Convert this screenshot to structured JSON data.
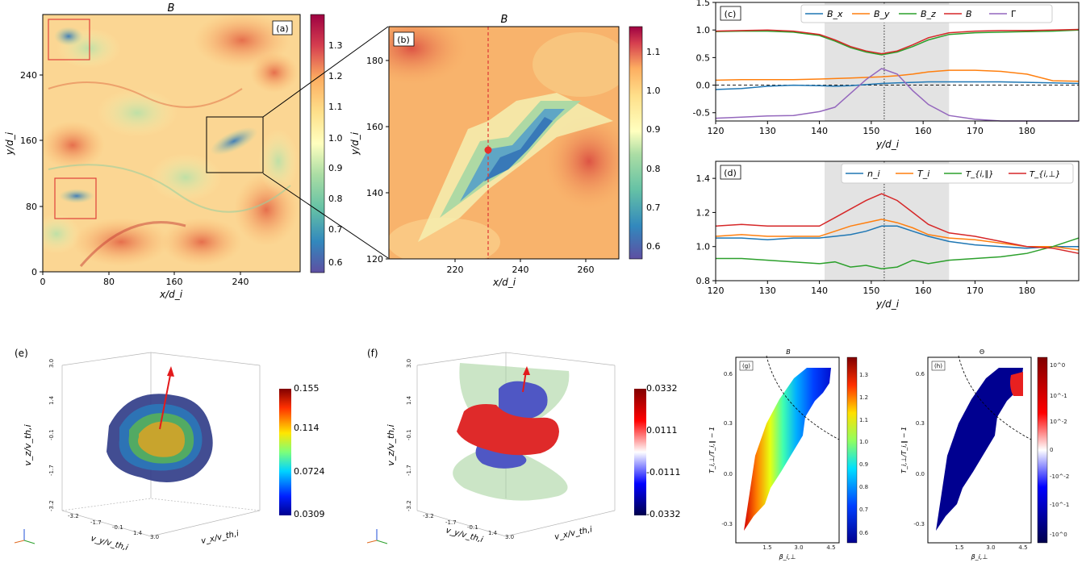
{
  "chart_data": [
    {
      "type": "heatmap",
      "panel_label": "(a)",
      "title": "B",
      "xlabel": "x/d_i",
      "ylabel": "y/d_i",
      "xticks": [
        "0",
        "80",
        "160",
        "240"
      ],
      "yticks": [
        "0",
        "80",
        "160",
        "240"
      ],
      "xlim": [
        0,
        312
      ],
      "ylim": [
        0,
        312
      ],
      "colorbar": {
        "ticks": [
          "0.6",
          "0.7",
          "0.8",
          "0.9",
          "1.0",
          "1.1",
          "1.2",
          "1.3"
        ],
        "range": [
          0.55,
          1.39
        ],
        "colormap": "Spectral_r"
      },
      "annotations": [
        {
          "type": "box",
          "color": "#e0403a",
          "x": [
            8,
            58
          ],
          "y": [
            256,
            306
          ]
        },
        {
          "type": "box",
          "color": "#e0403a",
          "x": [
            15,
            65
          ],
          "y": [
            65,
            115
          ]
        },
        {
          "type": "box",
          "color": "#000000",
          "x": [
            200,
            270
          ],
          "y": [
            120,
            188
          ]
        }
      ]
    },
    {
      "type": "heatmap",
      "panel_label": "(b)",
      "title": "B",
      "xlabel": "x/d_i",
      "ylabel": "y/d_i",
      "xticks": [
        "220",
        "240",
        "260"
      ],
      "yticks": [
        "120",
        "140",
        "160",
        "180"
      ],
      "xlim": [
        200,
        270
      ],
      "ylim": [
        120,
        190
      ],
      "colorbar": {
        "ticks": [
          "0.6",
          "0.7",
          "0.8",
          "0.9",
          "1.0",
          "1.1"
        ],
        "range": [
          0.55,
          1.16
        ],
        "colormap": "Spectral_r"
      },
      "annotations": [
        {
          "type": "vline",
          "color": "#e0403a",
          "x": 230.5
        },
        {
          "type": "point",
          "color": "#e8302a",
          "x": 230.5,
          "y": 153
        }
      ]
    },
    {
      "type": "line",
      "panel_label": "(c)",
      "xlabel": "y/d_i",
      "ylabel": "",
      "xticks": [
        "120",
        "130",
        "140",
        "150",
        "160",
        "170",
        "180"
      ],
      "yticks": [
        "-0.5",
        "0.0",
        "0.5",
        "1.0",
        "1.5"
      ],
      "xlim": [
        120,
        190
      ],
      "ylim": [
        -0.65,
        1.5
      ],
      "shaded_region": [
        141,
        165
      ],
      "vline": 152.5,
      "hline": 0,
      "legend_position": "top-right",
      "x": [
        120,
        125,
        130,
        135,
        140,
        143,
        146,
        149,
        152,
        155,
        158,
        161,
        165,
        170,
        175,
        180,
        185,
        190
      ],
      "series": [
        {
          "name": "B_x",
          "color": "#1f77b4",
          "values": [
            -0.08,
            -0.06,
            -0.02,
            0.0,
            -0.01,
            -0.02,
            -0.01,
            0.01,
            0.03,
            0.04,
            0.05,
            0.06,
            0.06,
            0.06,
            0.06,
            0.05,
            0.04,
            0.03
          ]
        },
        {
          "name": "B_y",
          "color": "#ff7f0e",
          "values": [
            0.09,
            0.1,
            0.1,
            0.1,
            0.11,
            0.12,
            0.13,
            0.14,
            0.15,
            0.17,
            0.2,
            0.24,
            0.27,
            0.27,
            0.25,
            0.2,
            0.08,
            0.07
          ]
        },
        {
          "name": "B_z",
          "color": "#2ca02c",
          "values": [
            0.97,
            0.98,
            0.98,
            0.96,
            0.9,
            0.8,
            0.68,
            0.6,
            0.55,
            0.6,
            0.7,
            0.82,
            0.92,
            0.95,
            0.96,
            0.97,
            0.98,
            1.0
          ]
        },
        {
          "name": "B",
          "color": "#d62728",
          "values": [
            0.98,
            0.99,
            1.0,
            0.98,
            0.92,
            0.82,
            0.7,
            0.62,
            0.57,
            0.62,
            0.73,
            0.86,
            0.95,
            0.98,
            0.99,
            0.99,
            1.0,
            1.01
          ]
        },
        {
          "name": "Γ",
          "color": "#9467bd",
          "values": [
            -0.6,
            -0.58,
            -0.56,
            -0.55,
            -0.48,
            -0.4,
            -0.15,
            0.1,
            0.3,
            0.2,
            -0.1,
            -0.35,
            -0.55,
            -0.62,
            -0.7,
            -0.7,
            -0.7,
            -0.7
          ]
        }
      ]
    },
    {
      "type": "line",
      "panel_label": "(d)",
      "xlabel": "y/d_i",
      "ylabel": "",
      "xticks": [
        "120",
        "130",
        "140",
        "150",
        "160",
        "170",
        "180"
      ],
      "yticks": [
        "0.8",
        "1.0",
        "1.2",
        "1.4"
      ],
      "xlim": [
        120,
        190
      ],
      "ylim": [
        0.8,
        1.5
      ],
      "shaded_region": [
        141,
        165
      ],
      "vline": 152.5,
      "legend_position": "top-right",
      "x": [
        120,
        125,
        130,
        135,
        140,
        143,
        146,
        149,
        152,
        155,
        158,
        161,
        165,
        170,
        175,
        180,
        185,
        190
      ],
      "series": [
        {
          "name": "n_i",
          "color": "#1f77b4",
          "values": [
            1.05,
            1.05,
            1.04,
            1.05,
            1.05,
            1.06,
            1.07,
            1.09,
            1.12,
            1.12,
            1.09,
            1.06,
            1.03,
            1.01,
            1.0,
            0.99,
            1.0,
            1.0
          ]
        },
        {
          "name": "T_i",
          "color": "#ff7f0e",
          "values": [
            1.06,
            1.07,
            1.06,
            1.06,
            1.06,
            1.09,
            1.12,
            1.14,
            1.16,
            1.14,
            1.11,
            1.07,
            1.05,
            1.04,
            1.02,
            1.0,
            1.0,
            0.98
          ]
        },
        {
          "name": "T_{i,∥}",
          "color": "#2ca02c",
          "values": [
            0.93,
            0.93,
            0.92,
            0.91,
            0.9,
            0.91,
            0.88,
            0.89,
            0.87,
            0.88,
            0.92,
            0.9,
            0.92,
            0.93,
            0.94,
            0.96,
            1.0,
            1.05
          ]
        },
        {
          "name": "T_{i,⊥}",
          "color": "#d62728",
          "values": [
            1.12,
            1.13,
            1.12,
            1.12,
            1.12,
            1.17,
            1.22,
            1.27,
            1.31,
            1.27,
            1.2,
            1.13,
            1.08,
            1.06,
            1.03,
            1.0,
            0.99,
            0.96
          ]
        }
      ]
    },
    {
      "type": "other",
      "panel_label": "(e)",
      "description_axes": {
        "z": "v_z/v_th,i",
        "y": "v_y/v_th,i",
        "x": "v_x/v_th,i"
      },
      "zticks": [
        "3.0",
        "1.4",
        "-0.1",
        "-1.7",
        "-3.2"
      ],
      "xticks": [
        "-3.2",
        "-1.7",
        "-0.1",
        "1.4",
        "3.0"
      ],
      "colorbar": {
        "ticks": [
          "0.155",
          "0.114",
          "0.0724",
          "0.0309"
        ],
        "colormap": "jet"
      }
    },
    {
      "type": "other",
      "panel_label": "(f)",
      "description_axes": {
        "z": "v_z/v_th,i",
        "y": "v_y/v_th,i",
        "x": "v_x/v_th,i"
      },
      "zticks": [
        "3.0",
        "1.4",
        "-0.1",
        "-1.7",
        "-3.2"
      ],
      "xticks": [
        "-3.2",
        "-1.7",
        "-0.1",
        "1.4",
        "3.0"
      ],
      "colorbar": {
        "ticks": [
          "0.0332",
          "0.0111",
          "-0.0111",
          "-0.0332"
        ],
        "colormap": "seismic"
      }
    },
    {
      "type": "heatmap",
      "panel_label": "(g)",
      "title": "B",
      "xlabel": "β_i,⊥",
      "ylabel": "T_i,⊥/T_i,∥ − 1",
      "xticks": [
        "1.5",
        "3.0",
        "4.5"
      ],
      "yticks": [
        "-0.3",
        "0.0",
        "0.3",
        "0.6"
      ],
      "colorbar": {
        "ticks": [
          "0.6",
          "0.7",
          "0.8",
          "0.9",
          "1.0",
          "1.1",
          "1.2",
          "1.3"
        ],
        "colormap": "jet"
      }
    },
    {
      "type": "heatmap",
      "panel_label": "(h)",
      "title": "Θ",
      "xlabel": "β_i,⊥",
      "ylabel": "T_i,⊥/T_i,∥ − 1",
      "xticks": [
        "1.5",
        "3.0",
        "4.5"
      ],
      "yticks": [
        "-0.3",
        "0.0",
        "0.3",
        "0.6"
      ],
      "colorbar": {
        "ticks": [
          "10^0",
          "10^-1",
          "10^-2",
          "0",
          "-10^-2",
          "-10^-1",
          "-10^0"
        ],
        "colormap": "seismic"
      }
    }
  ]
}
